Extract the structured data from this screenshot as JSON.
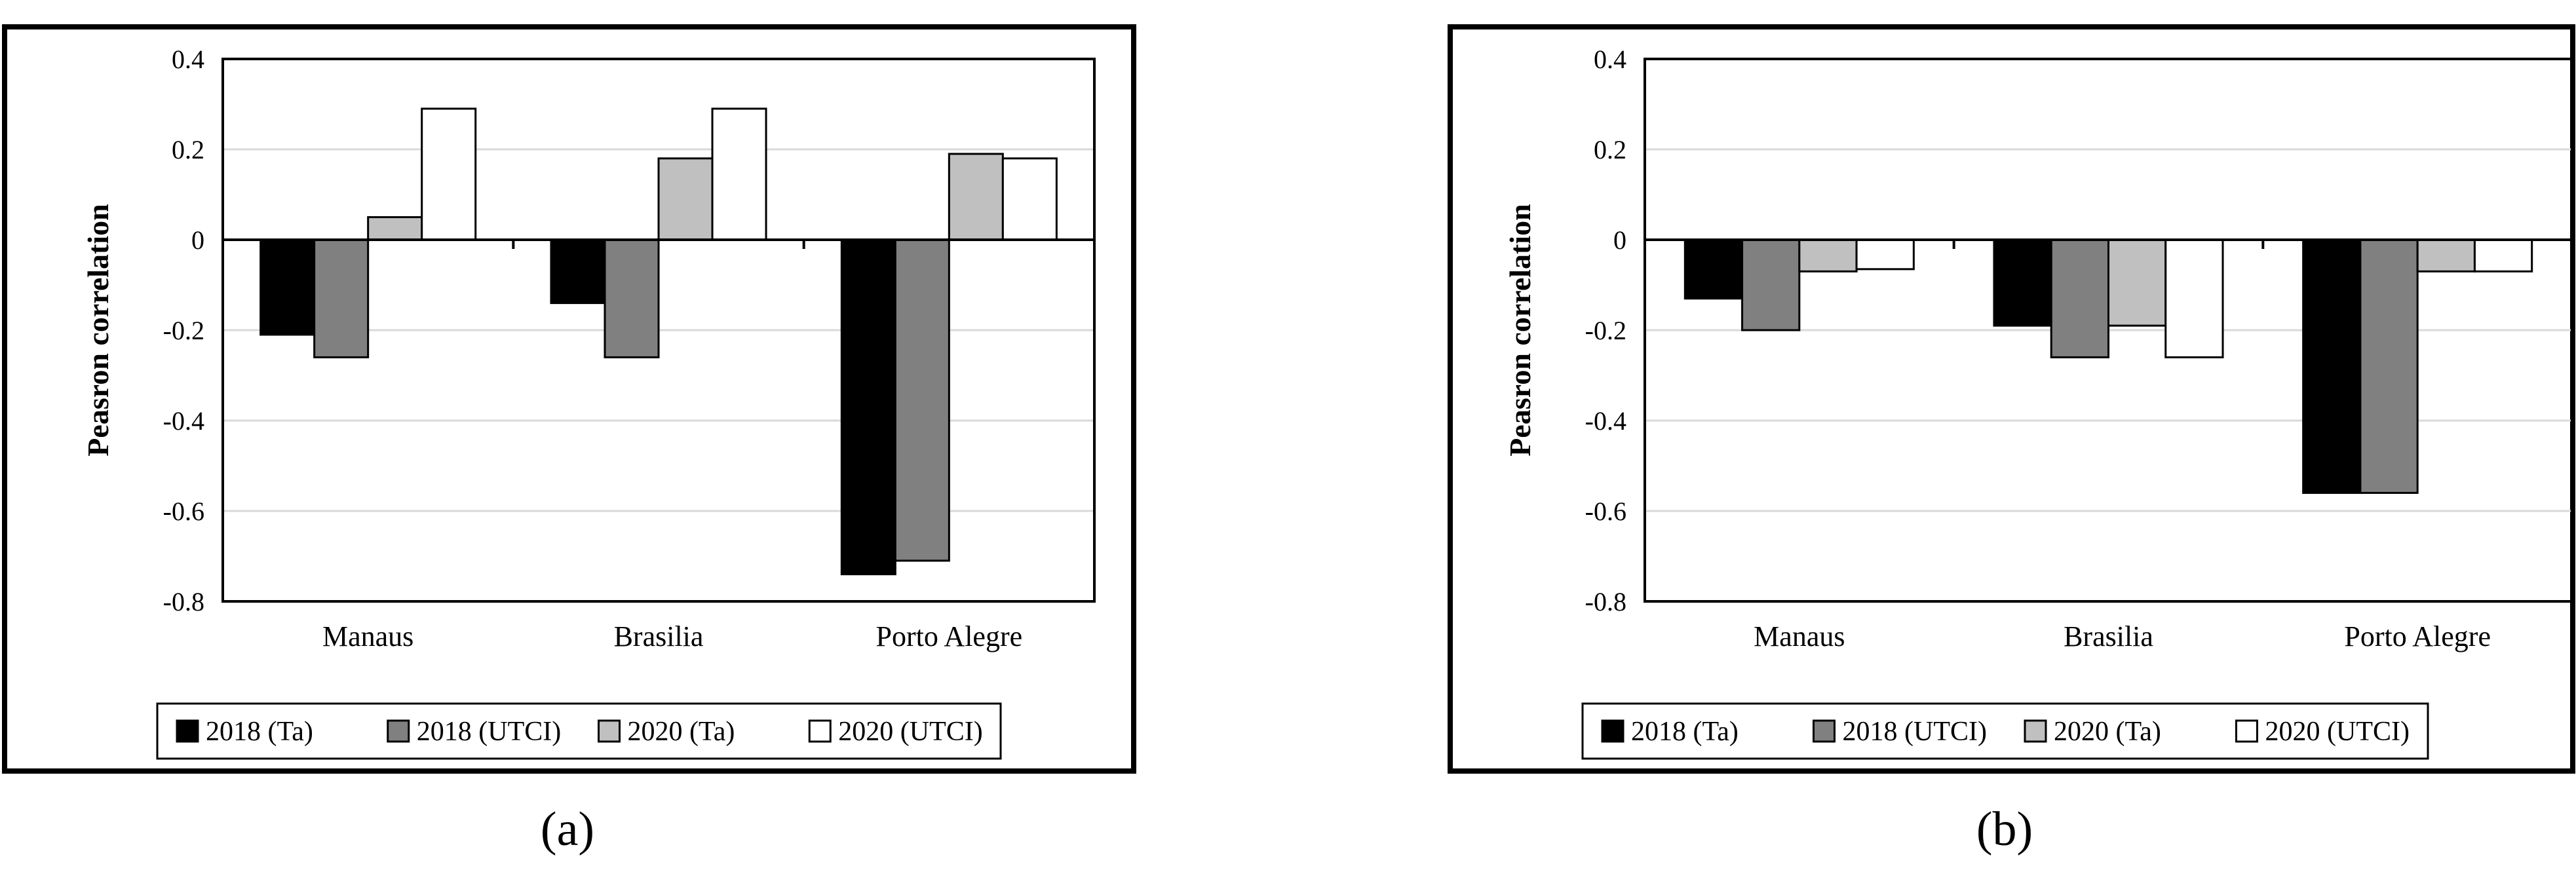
{
  "panel_captions": [
    "(a)",
    "(b)"
  ],
  "colors": {
    "series": [
      "#000000",
      "#808080",
      "#c0c0c0",
      "#ffffff"
    ],
    "gridline": "#d9d9d9",
    "frame": "#000000"
  },
  "chart_data": [
    {
      "type": "bar",
      "ylabel": "Peasron correlation",
      "xlabel": "",
      "ylim": [
        -0.8,
        0.4
      ],
      "yticks": [
        "0.4",
        "0.2",
        "0",
        "-0.2",
        "-0.4",
        "-0.6",
        "-0.8"
      ],
      "categories": [
        "Manaus",
        "Brasilia",
        "Porto Alegre"
      ],
      "grid": true,
      "legend_position": "bottom",
      "series": [
        {
          "name": "2018 (Ta)",
          "values": [
            -0.21,
            -0.14,
            -0.74
          ]
        },
        {
          "name": "2018 (UTCI)",
          "values": [
            -0.26,
            -0.26,
            -0.71
          ]
        },
        {
          "name": "2020 (Ta)",
          "values": [
            0.05,
            0.18,
            0.19
          ]
        },
        {
          "name": "2020 (UTCI)",
          "values": [
            0.29,
            0.29,
            0.18
          ]
        }
      ]
    },
    {
      "type": "bar",
      "ylabel": "Peasron correlation",
      "xlabel": "",
      "ylim": [
        -0.8,
        0.4
      ],
      "yticks": [
        "0.4",
        "0.2",
        "0",
        "-0.2",
        "-0.4",
        "-0.6",
        "-0.8"
      ],
      "categories": [
        "Manaus",
        "Brasilia",
        "Porto Alegre"
      ],
      "grid": true,
      "legend_position": "bottom",
      "series": [
        {
          "name": "2018 (Ta)",
          "values": [
            -0.13,
            -0.19,
            -0.56
          ]
        },
        {
          "name": "2018 (UTCI)",
          "values": [
            -0.2,
            -0.26,
            -0.56
          ]
        },
        {
          "name": "2020 (Ta)",
          "values": [
            -0.07,
            -0.19,
            -0.07
          ]
        },
        {
          "name": "2020 (UTCI)",
          "values": [
            -0.065,
            -0.26,
            -0.07
          ]
        }
      ]
    }
  ]
}
